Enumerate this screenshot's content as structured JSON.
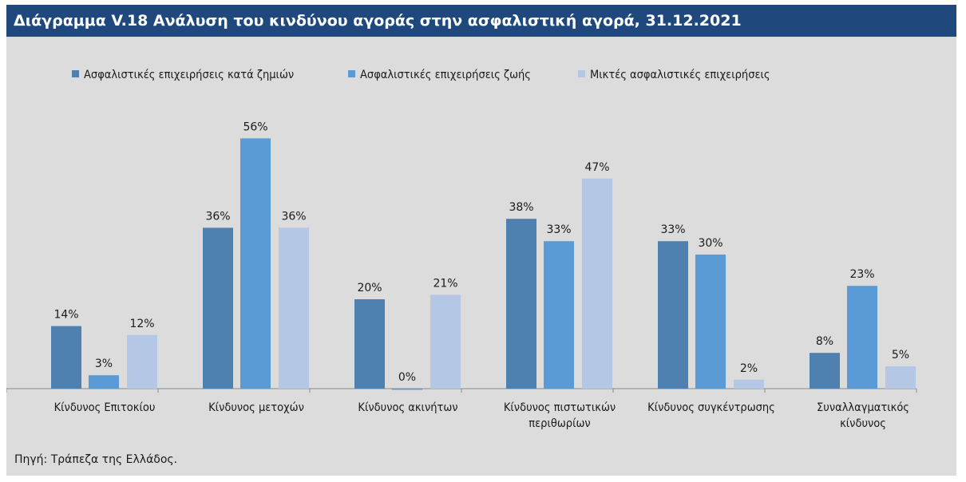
{
  "title": "Διάγραμμα V.18 Ανάλυση του κινδύνου αγοράς στην ασφαλιστική αγορά, 31.12.2021",
  "source": "Πηγή: Τράπεζα της Ελλάδος.",
  "colors": {
    "title_bg": "#1f497d",
    "panel_bg": "#dcdcdc",
    "series": [
      "#4f81b0",
      "#5b9bd5",
      "#b4c7e4"
    ]
  },
  "chart_data": {
    "type": "bar",
    "categories": [
      [
        "Κίνδυνος Επιτοκίου"
      ],
      [
        "Κίνδυνος μετοχών"
      ],
      [
        "Κίνδυνος ακινήτων"
      ],
      [
        "Κίνδυνος πιστωτικών",
        "περιθωρίων"
      ],
      [
        "Κίνδυνος συγκέντρωσης"
      ],
      [
        "Συναλλαγματικός",
        "κίνδυνος"
      ]
    ],
    "series": [
      {
        "name": "Ασφαλιστικές επιχειρήσεις κατά ζημιών",
        "values": [
          14,
          36,
          20,
          38,
          33,
          8
        ]
      },
      {
        "name": "Ασφαλιστικές επιχειρήσεις ζωής",
        "values": [
          3,
          56,
          0,
          33,
          30,
          23
        ]
      },
      {
        "name": "Μικτές ασφαλιστικές επιχειρήσεις",
        "values": [
          12,
          36,
          21,
          47,
          2,
          5
        ]
      }
    ],
    "value_suffix": "%",
    "ylim": [
      0,
      56
    ],
    "grid": false,
    "legend": "top"
  }
}
